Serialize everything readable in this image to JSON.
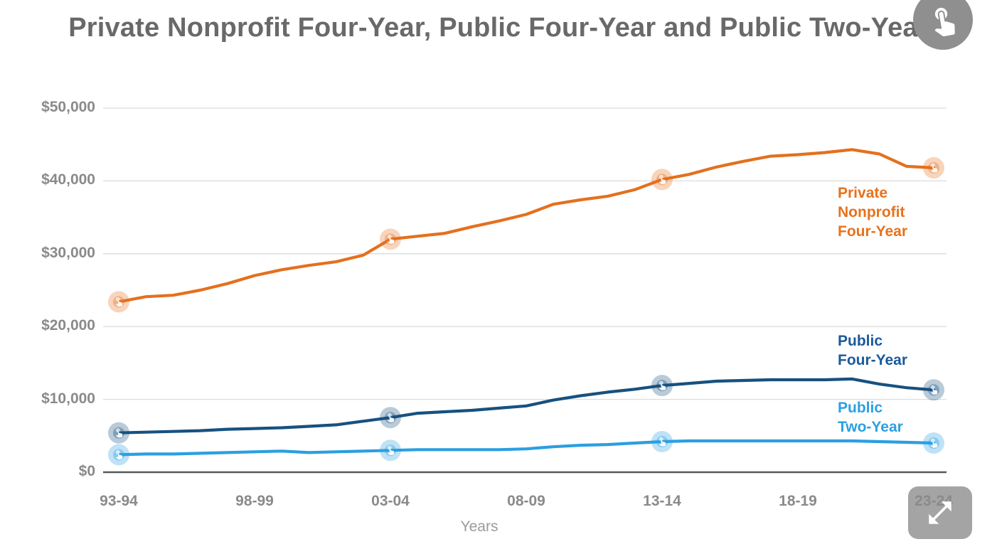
{
  "title": "Private Nonprofit Four-Year, Public Four-Year and Public Two-Year",
  "colors": {
    "title_text": "#696969",
    "axis_tick_text": "#8A8A8A",
    "axis_title_text": "#9B9B9B",
    "gridline": "#DCDCDC",
    "zero_axis_line": "#58595B",
    "button_gray": "#8F8F8F",
    "private_nonprofit_orange": "#E4701E",
    "public_four_year_navy": "#17517F",
    "public_two_year_blue": "#2B9FE1"
  },
  "buttons": {
    "top_right_icon": "tap-click-icon",
    "bottom_right_icon": "expand-fullscreen-icon"
  },
  "chart_data": {
    "type": "line",
    "title": "Private Nonprofit Four-Year, Public Four-Year and Public Two-Year",
    "xlabel": "Years",
    "ylabel": "",
    "ylim": [
      0,
      50000
    ],
    "grid": "horizontal",
    "legend_position": "inline-right",
    "y_ticks": [
      0,
      10000,
      20000,
      30000,
      40000,
      50000
    ],
    "y_tick_labels": [
      "$0",
      "$10,000",
      "$20,000",
      "$30,000",
      "$40,000",
      "$50,000"
    ],
    "x_tick_labels": [
      "93-94",
      "98-99",
      "03-04",
      "08-09",
      "13-14",
      "18-19",
      "23-24"
    ],
    "x_tick_indices": [
      0,
      5,
      10,
      15,
      20,
      25,
      30
    ],
    "x_categories": [
      "93-94",
      "94-95",
      "95-96",
      "96-97",
      "97-98",
      "98-99",
      "99-00",
      "00-01",
      "01-02",
      "02-03",
      "03-04",
      "04-05",
      "05-06",
      "06-07",
      "07-08",
      "08-09",
      "09-10",
      "10-11",
      "11-12",
      "12-13",
      "13-14",
      "14-15",
      "15-16",
      "16-17",
      "17-18",
      "18-19",
      "19-20",
      "20-21",
      "21-22",
      "22-23",
      "23-24"
    ],
    "marker_indices": [
      0,
      10,
      20,
      30
    ],
    "series": [
      {
        "name": "Private Nonprofit Four-Year",
        "label_display": "Private\nNonprofit\nFour-Year",
        "color": "#E4701E",
        "label_color": "#E8711C",
        "values": [
          23400,
          24100,
          24300,
          25000,
          25900,
          27000,
          27800,
          28400,
          28900,
          29800,
          32000,
          32400,
          32800,
          33700,
          34500,
          35400,
          36800,
          37400,
          37900,
          38800,
          40200,
          40900,
          41900,
          42700,
          43400,
          43600,
          43900,
          44300,
          43700,
          42000,
          41800
        ]
      },
      {
        "name": "Public Four-Year",
        "label_display": "Public\nFour-Year",
        "color": "#17517F",
        "label_color": "#1A5A9B",
        "values": [
          5400,
          5500,
          5600,
          5700,
          5900,
          6000,
          6100,
          6300,
          6500,
          7000,
          7500,
          8100,
          8300,
          8500,
          8800,
          9100,
          9900,
          10500,
          11000,
          11400,
          11900,
          12200,
          12500,
          12600,
          12700,
          12700,
          12700,
          12800,
          12100,
          11600,
          11300
        ]
      },
      {
        "name": "Public Two-Year",
        "label_display": "Public\nTwo-Year",
        "color": "#2B9FE1",
        "label_color": "#2AA0E4",
        "values": [
          2400,
          2500,
          2500,
          2600,
          2700,
          2800,
          2900,
          2700,
          2800,
          2900,
          3000,
          3100,
          3100,
          3100,
          3100,
          3200,
          3500,
          3700,
          3800,
          4000,
          4200,
          4300,
          4300,
          4300,
          4300,
          4300,
          4300,
          4300,
          4200,
          4100,
          4000
        ]
      }
    ]
  }
}
